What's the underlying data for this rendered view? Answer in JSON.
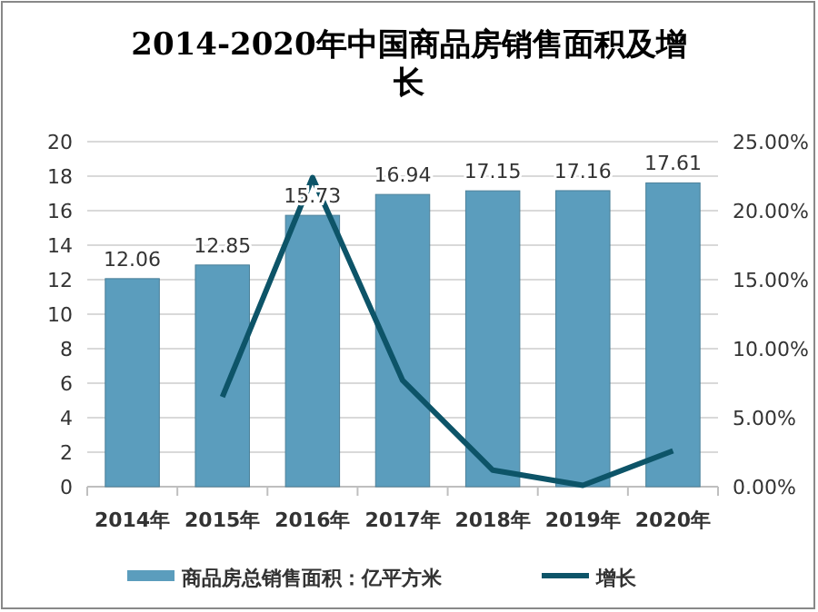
{
  "chart_data": {
    "type": "bar",
    "title": "2014-2020年中国商品房销售面积及增长",
    "categories": [
      "2014年",
      "2015年",
      "2016年",
      "2017年",
      "2018年",
      "2019年",
      "2020年"
    ],
    "series": [
      {
        "name": "商品房总销售面积：亿平方米",
        "color": "#5b9dbd",
        "values": [
          12.06,
          12.85,
          15.73,
          16.94,
          17.15,
          17.16,
          17.61
        ],
        "value_labels": [
          "12.06",
          "12.85",
          "15.73",
          "16.94",
          "17.15",
          "17.16",
          "17.61"
        ]
      },
      {
        "name": "增长",
        "type": "line",
        "axis": "y2",
        "color": "#0d5468",
        "marker": "none",
        "values": [
          null,
          6.5,
          22.4,
          7.7,
          1.2,
          0.1,
          2.6
        ]
      }
    ],
    "ylim": [
      0,
      20
    ],
    "yticks": [
      0,
      2,
      4,
      6,
      8,
      10,
      12,
      14,
      16,
      18,
      20
    ],
    "y2lim": [
      0,
      25
    ],
    "y2ticks": [
      {
        "value": 0,
        "label": "0.00%"
      },
      {
        "value": 5,
        "label": "5.00%"
      },
      {
        "value": 10,
        "label": "10.00%"
      },
      {
        "value": 15,
        "label": "15.00%"
      },
      {
        "value": 20,
        "label": "20.00%"
      },
      {
        "value": 25,
        "label": "25.00%"
      }
    ],
    "grid": "y",
    "legend": "bottom"
  }
}
